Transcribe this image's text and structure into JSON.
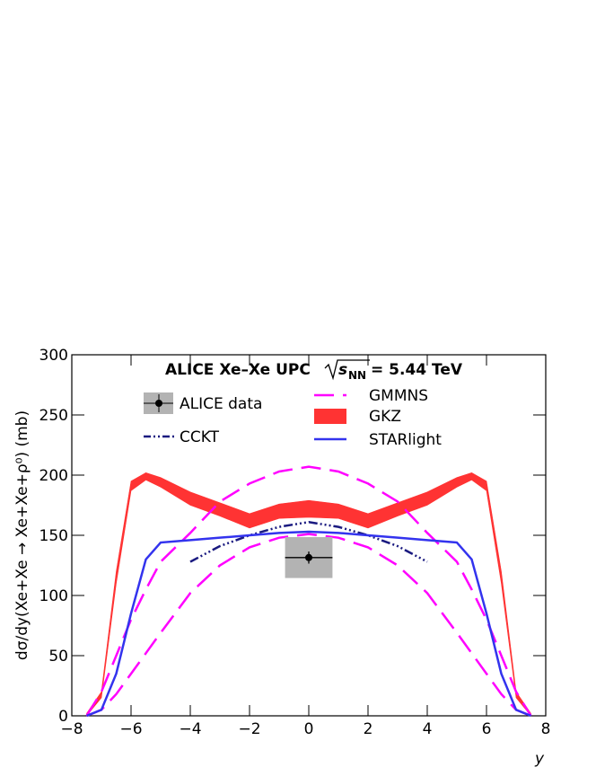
{
  "chart_data": {
    "type": "line",
    "title": "ALICE Xe–Xe UPC",
    "energy": {
      "symbol": "s",
      "subscript": "NN",
      "value": "= 5.44 TeV"
    },
    "x_label": "y",
    "y_label": "dσ/dy(Xe+Xe → Xe+Xe+ρ⁰) (mb)",
    "xlim": [
      -8,
      8
    ],
    "ylim": [
      0,
      300
    ],
    "xticks": [
      {
        "value": -8,
        "label": "−8"
      },
      {
        "value": -6,
        "label": "−6"
      },
      {
        "value": -4,
        "label": "−4"
      },
      {
        "value": -2,
        "label": "−2"
      },
      0,
      2,
      4,
      6,
      8
    ],
    "yticks": [
      0,
      50,
      100,
      150,
      200,
      250,
      300
    ],
    "series": [
      {
        "name": "ALICE data",
        "style": "data",
        "color": "#000000",
        "x": [
          0
        ],
        "values": [
          131.5
        ],
        "stat_error": [
          5
        ],
        "syst_error": [
          17
        ],
        "xerr": [
          0.8
        ]
      },
      {
        "name": "GMMNS",
        "style": "dashed-band",
        "color": "#ff00ff",
        "x": [
          -7.5,
          -7,
          -6.5,
          -6,
          -5.5,
          -5,
          -4,
          -3,
          -2,
          -1,
          0,
          1,
          2,
          3,
          4,
          5,
          5.5,
          6,
          6.5,
          7,
          7.5
        ],
        "upper": [
          0,
          20,
          50,
          80,
          105,
          128,
          152,
          178,
          193,
          203,
          207,
          203,
          193,
          178,
          152,
          128,
          105,
          80,
          50,
          20,
          0
        ],
        "lower": [
          0,
          5,
          18,
          35,
          52,
          69,
          102,
          125,
          140,
          148,
          151,
          148,
          140,
          125,
          102,
          69,
          52,
          35,
          18,
          5,
          0
        ]
      },
      {
        "name": "GKZ",
        "style": "band",
        "color": "#ff3333",
        "x": [
          -7.5,
          -7,
          -6.5,
          -6,
          -5.5,
          -5,
          -4,
          -3,
          -2,
          -1,
          0,
          1,
          2,
          3,
          4,
          5,
          5.5,
          6,
          6.5,
          7,
          7.5
        ],
        "upper": [
          2,
          20,
          120,
          195,
          202,
          198,
          186,
          177,
          168,
          176,
          179,
          176,
          168,
          177,
          186,
          198,
          202,
          195,
          120,
          20,
          2
        ],
        "lower": [
          0,
          15,
          110,
          187,
          196,
          190,
          175,
          166,
          156,
          164,
          165,
          164,
          156,
          166,
          175,
          190,
          196,
          187,
          110,
          15,
          0
        ]
      },
      {
        "name": "CCKT",
        "style": "dashdot",
        "color": "#1a1a80",
        "x": [
          -4,
          -3,
          -2,
          -1,
          0,
          1,
          2,
          3,
          4
        ],
        "values": [
          128,
          141,
          150,
          157,
          161,
          157,
          150,
          141,
          128
        ]
      },
      {
        "name": "STARlight",
        "style": "solid",
        "color": "#3333ee",
        "x": [
          -7.5,
          -7,
          -6.5,
          -6,
          -5.5,
          -5,
          -4,
          -3,
          -2,
          -1,
          0,
          1,
          2,
          3,
          4,
          5,
          5.5,
          6,
          6.5,
          7,
          7.5
        ],
        "values": [
          0,
          5,
          35,
          85,
          130,
          144,
          146,
          148,
          150,
          152,
          153,
          152,
          150,
          148,
          146,
          144,
          130,
          85,
          35,
          5,
          0
        ]
      }
    ]
  }
}
